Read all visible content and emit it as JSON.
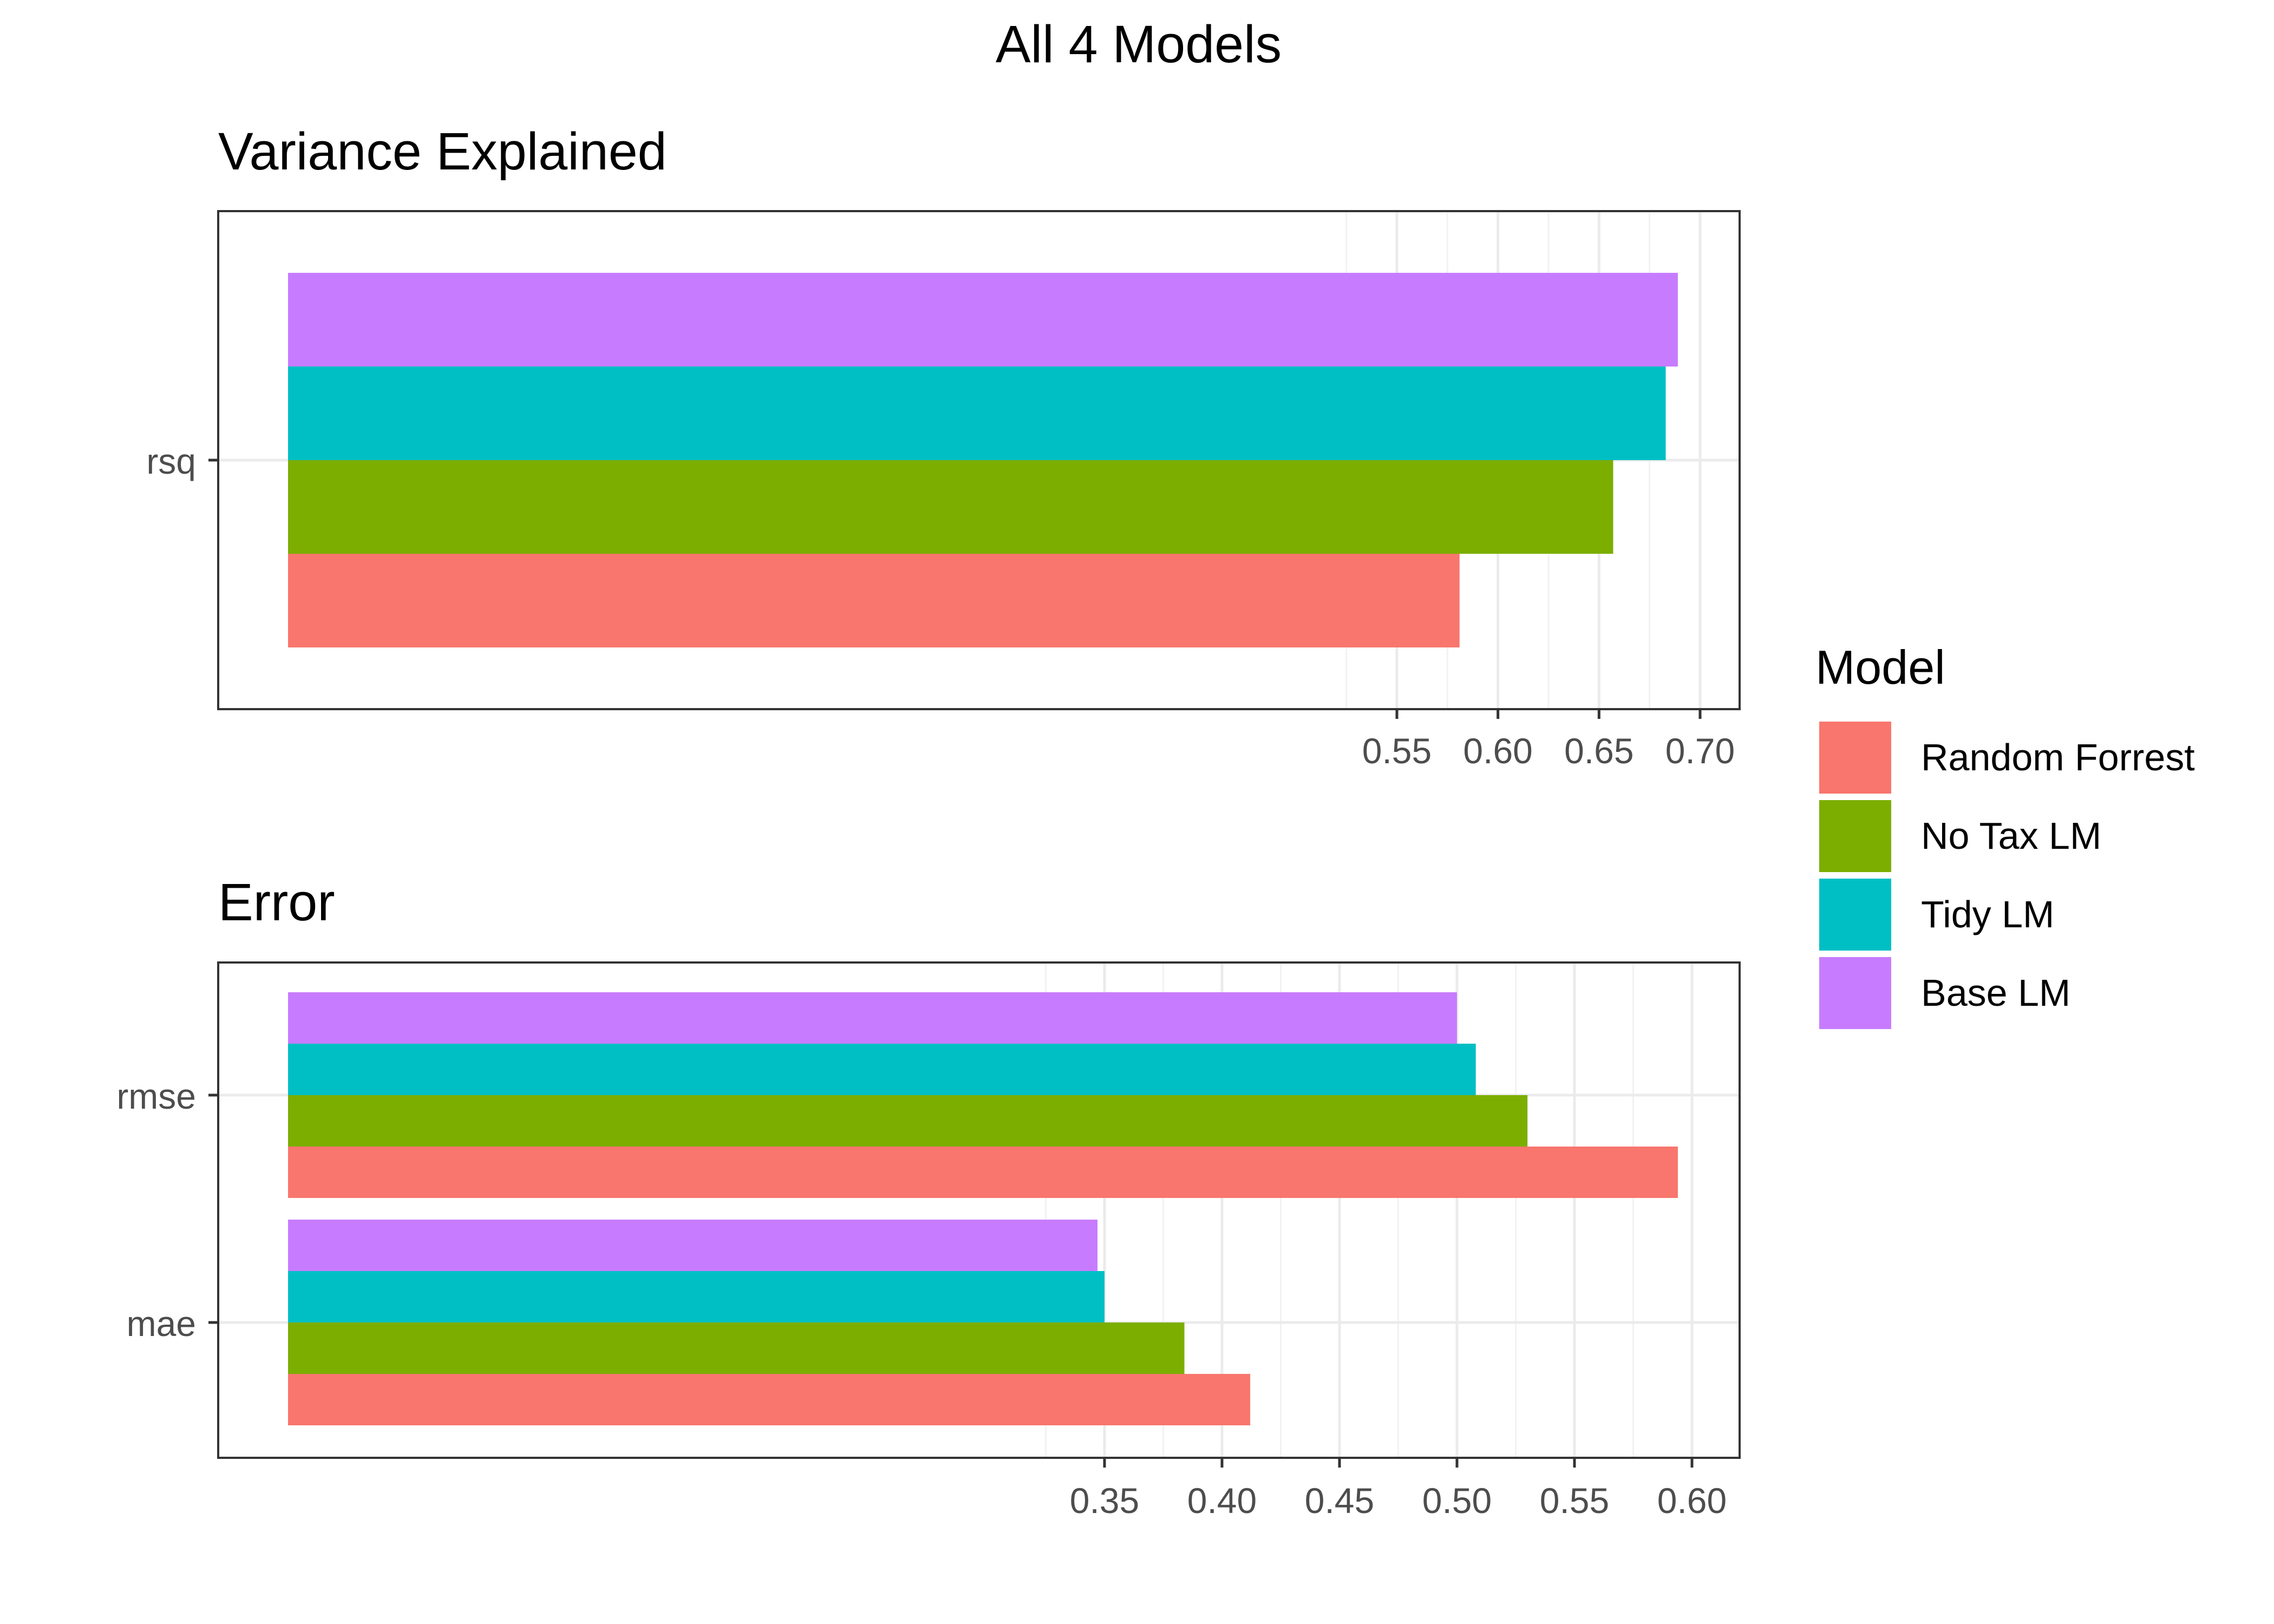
{
  "page_title": "All 4 Models",
  "legend": {
    "title": "Model",
    "placement": "right",
    "items": [
      {
        "label": "Random Forrest",
        "color": "#F8766D"
      },
      {
        "label": "No Tax LM",
        "color": "#7CAE00"
      },
      {
        "label": "Tidy LM",
        "color": "#00BFC4"
      },
      {
        "label": "Base LM",
        "color": "#C77CFF"
      }
    ]
  },
  "chart_data": [
    {
      "type": "bar",
      "orientation": "horizontal",
      "title": "Variance Explained",
      "xlabel": "",
      "ylabel": "",
      "categories": [
        "rsq"
      ],
      "xlim": [
        0.5,
        0.7
      ],
      "x_ticks": [
        "0.55",
        "0.60",
        "0.65",
        "0.70"
      ],
      "grid": true,
      "series": [
        {
          "name": "Random Forrest",
          "values": [
            0.581
          ]
        },
        {
          "name": "No Tax LM",
          "values": [
            0.657
          ]
        },
        {
          "name": "Tidy LM",
          "values": [
            0.683
          ]
        },
        {
          "name": "Base LM",
          "values": [
            0.689
          ]
        }
      ]
    },
    {
      "type": "bar",
      "orientation": "horizontal",
      "title": "Error",
      "xlabel": "",
      "ylabel": "",
      "categories": [
        "rmse",
        "mae"
      ],
      "xlim": [
        0.35,
        0.6
      ],
      "x_ticks": [
        "0.35",
        "0.40",
        "0.45",
        "0.50",
        "0.55",
        "0.60"
      ],
      "grid": true,
      "series": [
        {
          "name": "Random Forrest",
          "values": [
            0.594,
            0.412
          ]
        },
        {
          "name": "No Tax LM",
          "values": [
            0.53,
            0.384
          ]
        },
        {
          "name": "Tidy LM",
          "values": [
            0.508,
            0.35
          ]
        },
        {
          "name": "Base LM",
          "values": [
            0.5,
            0.347
          ]
        }
      ]
    }
  ]
}
